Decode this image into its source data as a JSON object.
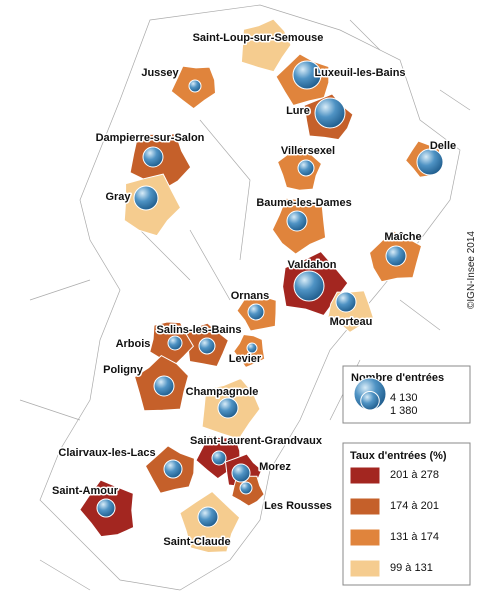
{
  "places": [
    {
      "name": "Saint-Loup-sur-Semouse",
      "class": 3
    },
    {
      "name": "Jussey",
      "class": 2,
      "entrees": 580
    },
    {
      "name": "Luxeuil-les-Bains",
      "class": 2,
      "entrees": 3160
    },
    {
      "name": "Lure",
      "class": 1,
      "entrees": 3630
    },
    {
      "name": "Dampierre-sur-Salon",
      "class": 1,
      "entrees": 1610
    },
    {
      "name": "Delle",
      "class": 2,
      "entrees": 2730
    },
    {
      "name": "Villersexel",
      "class": 2,
      "entrees": 1030
    },
    {
      "name": "Gray",
      "class": 3,
      "entrees": 2320
    },
    {
      "name": "Baume-les-Dames",
      "class": 2,
      "entrees": 1610
    },
    {
      "name": "Maîche",
      "class": 2,
      "entrees": 1610
    },
    {
      "name": "Valdahon",
      "class": 0,
      "entrees": 3630
    },
    {
      "name": "Morteau",
      "class": 3,
      "entrees": 1610
    },
    {
      "name": "Ornans",
      "class": 2,
      "entrees": 1030
    },
    {
      "name": "Salins-les-Bains",
      "class": 1,
      "entrees": 1030
    },
    {
      "name": "Arbois",
      "class": 1,
      "entrees": 790
    },
    {
      "name": "Levier",
      "class": 2,
      "entrees": 400
    },
    {
      "name": "Poligny",
      "class": 1,
      "entrees": 1610
    },
    {
      "name": "Champagnole",
      "class": 3,
      "entrees": 1610
    },
    {
      "name": "Saint-Laurent-Grandvaux",
      "class": 0,
      "entrees": 790
    },
    {
      "name": "Clairvaux-les-Lacs",
      "class": 1,
      "entrees": 1310
    },
    {
      "name": "Morez",
      "class": 0,
      "entrees": 1310
    },
    {
      "name": "Les Rousses",
      "class": 1,
      "entrees": 580
    },
    {
      "name": "Saint-Amour",
      "class": 0,
      "entrees": 1310
    },
    {
      "name": "Saint-Claude",
      "class": 3,
      "entrees": 1610
    }
  ],
  "legend_size": {
    "title": "Nombre d'entrées",
    "values": [
      {
        "value": 4130,
        "label": "4 130"
      },
      {
        "value": 1380,
        "label": "1 380"
      }
    ]
  },
  "legend_rate": {
    "title": "Taux d'entrées (%)",
    "classes": [
      {
        "label": "201 à 278",
        "color": "#a32620"
      },
      {
        "label": "174 à 201",
        "color": "#c5602a"
      },
      {
        "label": "131 à 174",
        "color": "#e0843c"
      },
      {
        "label": "99 à 131",
        "color": "#f5cc8f"
      }
    ]
  },
  "credit": "©IGN-Insee 2014"
}
